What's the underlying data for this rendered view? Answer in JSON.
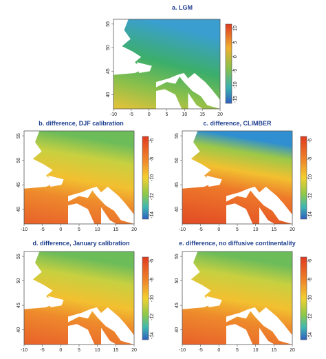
{
  "panels": [
    {
      "title": "a. LGM",
      "xticks": [
        -10,
        -5,
        0,
        5,
        10,
        15,
        20
      ],
      "yticks": [
        55,
        50,
        45,
        40
      ],
      "colorbar_ticks": [
        10,
        5,
        0,
        -5,
        -10,
        -15
      ]
    },
    {
      "title": "b. difference, DJF calibration",
      "xticks": [
        -10,
        -5,
        0,
        5,
        10,
        15,
        20
      ],
      "yticks": [
        55,
        50,
        45,
        40
      ],
      "colorbar_ticks": [
        -6,
        -8,
        -10,
        -12,
        -14
      ]
    },
    {
      "title": "c. difference, CLIMBER",
      "xticks": [
        -10,
        -5,
        0,
        5,
        10,
        15,
        20
      ],
      "yticks": [
        55,
        50,
        45,
        40
      ],
      "colorbar_ticks": [
        -6,
        -8,
        -10,
        -12,
        -14
      ]
    },
    {
      "title": "d. difference, January calibration",
      "xticks": [
        -10,
        -5,
        0,
        5,
        10,
        15,
        20
      ],
      "yticks": [
        55,
        50,
        45,
        40
      ],
      "colorbar_ticks": [
        -6,
        -8,
        -10,
        -12,
        -14
      ]
    },
    {
      "title": "e. difference, no diffusive continentality",
      "xticks": [
        -10,
        -5,
        0,
        5,
        10,
        15,
        20
      ],
      "yticks": [
        55,
        50,
        45,
        40
      ],
      "colorbar_ticks": [
        -6,
        -8,
        -10,
        -12,
        -14
      ]
    }
  ]
}
